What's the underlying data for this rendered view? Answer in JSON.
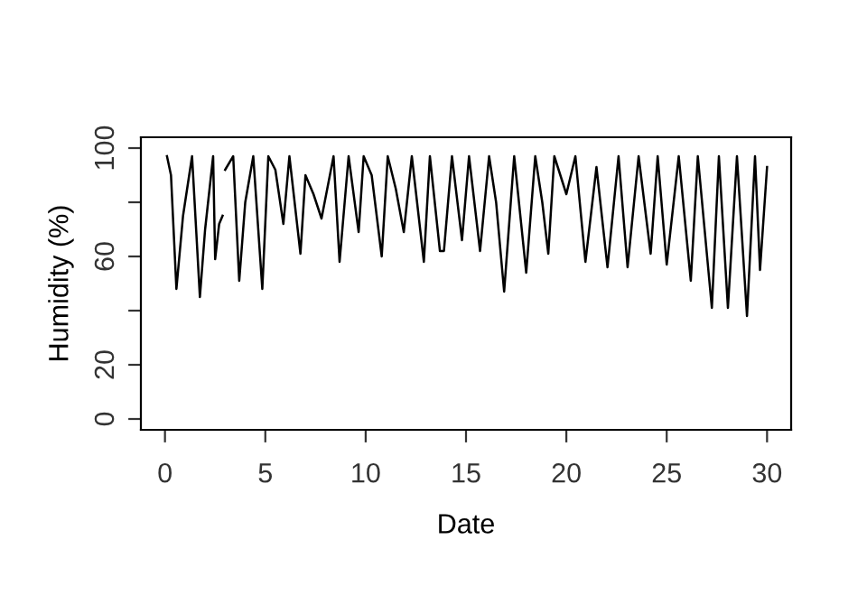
{
  "chart_data": {
    "type": "line",
    "xlabel": "Date",
    "ylabel": "Humidity (%)",
    "x": [
      0.1,
      0.3,
      0.57,
      0.9,
      1.35,
      1.74,
      2.0,
      2.4,
      2.5,
      2.7,
      2.87,
      2.95,
      3.0,
      3.4,
      3.7,
      4.0,
      4.4,
      4.85,
      5.15,
      5.5,
      5.9,
      6.2,
      6.75,
      7.0,
      7.4,
      7.8,
      8.4,
      8.7,
      9.15,
      9.65,
      9.9,
      10.3,
      10.8,
      11.1,
      11.5,
      11.9,
      12.3,
      12.9,
      13.2,
      13.7,
      13.9,
      14.3,
      14.8,
      15.15,
      15.7,
      16.15,
      16.5,
      16.9,
      17.4,
      18.0,
      18.45,
      18.8,
      19.1,
      19.4,
      20.0,
      20.45,
      20.95,
      21.5,
      22.05,
      22.6,
      23.05,
      23.6,
      24.2,
      24.55,
      25.0,
      25.6,
      26.2,
      26.55,
      27.25,
      27.6,
      28.05,
      28.5,
      29.0,
      29.4,
      29.65,
      30.0
    ],
    "series": [
      {
        "color": "#000000",
        "values": [
          97,
          90,
          48,
          75,
          97,
          45,
          70,
          97,
          59,
          72,
          75,
          null,
          92,
          97,
          51,
          80,
          97,
          48,
          97,
          92,
          72,
          97,
          61,
          90,
          83,
          74,
          97,
          58,
          97,
          69,
          97,
          90,
          60,
          97,
          85,
          69,
          97,
          58,
          97,
          62,
          62,
          97,
          66,
          97,
          62,
          97,
          80,
          47,
          97,
          54,
          97,
          80,
          61,
          97,
          83,
          97,
          58,
          93,
          56,
          97,
          56,
          97,
          61,
          97,
          57,
          97,
          51,
          97,
          41,
          97,
          41,
          97,
          38,
          97,
          55,
          93
        ]
      }
    ],
    "xlim": [
      -1.2,
      31.2
    ],
    "ylim": [
      -4,
      104
    ],
    "xticks": [
      0,
      5,
      10,
      15,
      20,
      25,
      30
    ],
    "yticks": [
      0,
      20,
      {
        "value": 40,
        "label": null
      },
      60,
      {
        "value": 80,
        "label": null
      },
      100
    ],
    "grid": false,
    "legend": false,
    "marker": "none",
    "line_style": "solid"
  }
}
